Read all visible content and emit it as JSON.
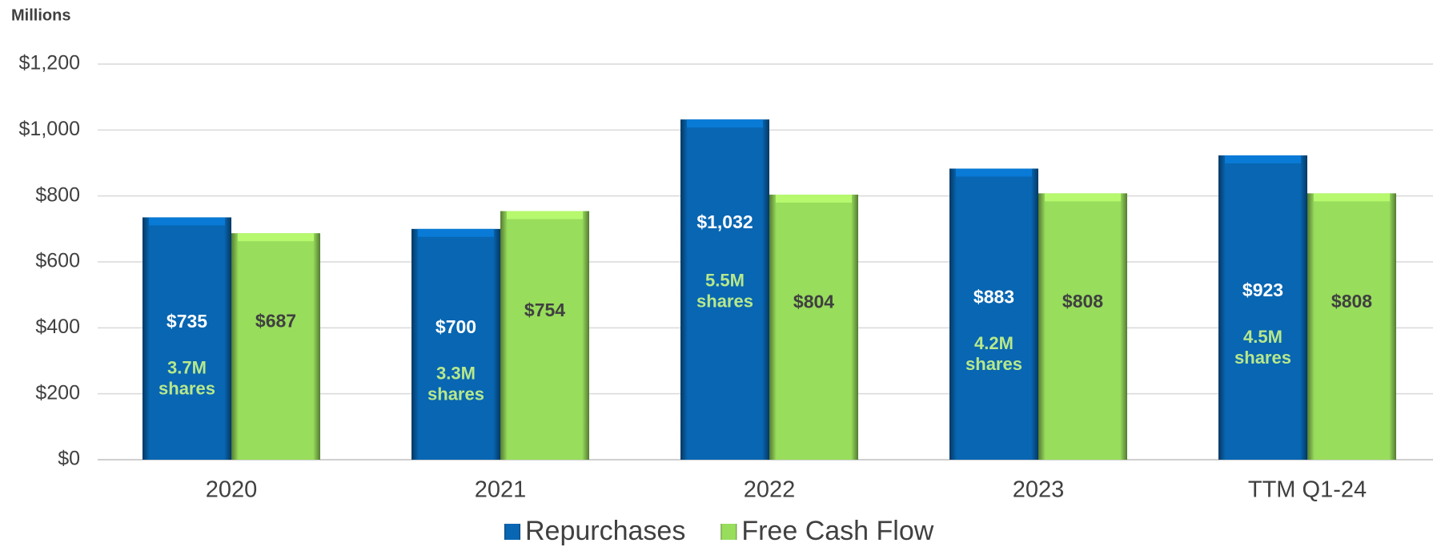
{
  "chart_data": {
    "type": "bar",
    "y_axis_label": "Millions",
    "categories": [
      "2020",
      "2021",
      "2022",
      "2023",
      "TTM Q1-24"
    ],
    "series": [
      {
        "name": "Repurchases",
        "color": "#0866b2",
        "values": [
          735,
          700,
          1032,
          883,
          923
        ],
        "value_labels": [
          "$735",
          "$700",
          "$1,032",
          "$883",
          "$923"
        ]
      },
      {
        "name": "Free Cash Flow",
        "color": "#98dd5c",
        "values": [
          687,
          754,
          804,
          808,
          808
        ],
        "value_labels": [
          "$687",
          "$754",
          "$804",
          "$808",
          "$808"
        ]
      }
    ],
    "share_labels": [
      {
        "amount": "3.7M",
        "unit": "shares"
      },
      {
        "amount": "3.3M",
        "unit": "shares"
      },
      {
        "amount": "5.5M",
        "unit": "shares"
      },
      {
        "amount": "4.2M",
        "unit": "shares"
      },
      {
        "amount": "4.5M",
        "unit": "shares"
      }
    ],
    "ylim": [
      0,
      1200
    ],
    "yticks": [
      {
        "value": 0,
        "label": "$0"
      },
      {
        "value": 200,
        "label": "$200"
      },
      {
        "value": 400,
        "label": "$400"
      },
      {
        "value": 600,
        "label": "$600"
      },
      {
        "value": 800,
        "label": "$800"
      },
      {
        "value": 1000,
        "label": "$1,000"
      },
      {
        "value": 1200,
        "label": "$1,200"
      }
    ],
    "grid": true,
    "legend": "bottom"
  }
}
